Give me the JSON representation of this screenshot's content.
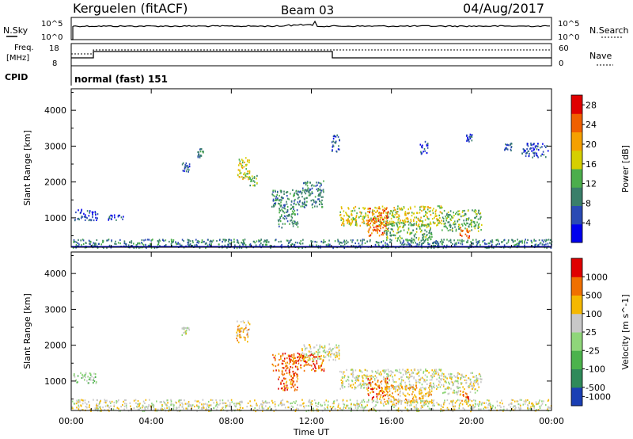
{
  "header": {
    "station": "Kerguelen (fitACF)",
    "beam": "Beam 03",
    "date": "04/Aug/2017"
  },
  "strips": {
    "nsky": {
      "label": "N.Sky",
      "ticks": [
        "10^5",
        "10^0"
      ]
    },
    "nsearch": {
      "label": "N.Search"
    },
    "freq": {
      "label_line1": "Freq.",
      "label_line2": "[MHz]",
      "ticks": [
        "18",
        "8"
      ]
    },
    "nave": {
      "label": "Nave",
      "ticks": [
        "60",
        "0"
      ]
    },
    "cpid": {
      "label": "CPID",
      "value": "normal (fast) 151"
    }
  },
  "chart_data": [
    {
      "type": "heatmap",
      "name": "power-panel",
      "xlabel": "Time UT",
      "ylabel": "Slant Range [km]",
      "x_tick_labels": [
        "00:00",
        "04:00",
        "08:00",
        "12:00",
        "16:00",
        "20:00",
        "00:00"
      ],
      "x_range_hours": [
        0,
        24
      ],
      "y_tick_labels": [
        "1000",
        "2000",
        "3000",
        "4000"
      ],
      "y_range_km": [
        180,
        4600
      ],
      "colorbar": {
        "label": "Power [dB]",
        "ticks": [
          "4",
          "8",
          "12",
          "16",
          "20",
          "24",
          "28"
        ],
        "range": [
          0,
          30
        ],
        "colors": [
          "#0000ee",
          "#2a4ab4",
          "#3a7f6a",
          "#4cae4c",
          "#d6cf00",
          "#f5a000",
          "#f06000",
          "#e00000"
        ]
      },
      "scatter_regions": [
        {
          "t0": 0.1,
          "t1": 1.3,
          "r0": 950,
          "r1": 1250,
          "level": 1
        },
        {
          "t0": 1.8,
          "t1": 2.6,
          "r0": 950,
          "r1": 1100,
          "level": 1
        },
        {
          "t0": 5.5,
          "t1": 5.9,
          "r0": 2300,
          "r1": 2550,
          "level": 1
        },
        {
          "t0": 6.3,
          "t1": 6.6,
          "r0": 2700,
          "r1": 2950,
          "level": 2
        },
        {
          "t0": 8.2,
          "t1": 8.9,
          "r0": 2100,
          "r1": 2700,
          "level": 4
        },
        {
          "t0": 8.9,
          "t1": 9.3,
          "r0": 1900,
          "r1": 2200,
          "level": 3
        },
        {
          "t0": 10.0,
          "t1": 12.6,
          "r0": 1300,
          "r1": 1800,
          "level": 2
        },
        {
          "t0": 10.3,
          "t1": 11.3,
          "r0": 750,
          "r1": 1350,
          "level": 2
        },
        {
          "t0": 11.5,
          "t1": 12.6,
          "r0": 1700,
          "r1": 2050,
          "level": 2
        },
        {
          "t0": 13.0,
          "t1": 13.4,
          "r0": 2850,
          "r1": 3350,
          "level": 1
        },
        {
          "t0": 13.4,
          "t1": 18.5,
          "r0": 800,
          "r1": 1350,
          "level": 4
        },
        {
          "t0": 14.8,
          "t1": 15.8,
          "r0": 500,
          "r1": 1300,
          "level": 6
        },
        {
          "t0": 15.6,
          "t1": 18.0,
          "r0": 400,
          "r1": 900,
          "level": 3
        },
        {
          "t0": 18.5,
          "t1": 20.5,
          "r0": 650,
          "r1": 1250,
          "level": 3
        },
        {
          "t0": 19.4,
          "t1": 19.9,
          "r0": 450,
          "r1": 750,
          "level": 6
        },
        {
          "t0": 17.4,
          "t1": 17.8,
          "r0": 2800,
          "r1": 3150,
          "level": 1
        },
        {
          "t0": 19.7,
          "t1": 20.0,
          "r0": 3150,
          "r1": 3350,
          "level": 1
        },
        {
          "t0": 21.6,
          "t1": 22.0,
          "r0": 2900,
          "r1": 3100,
          "level": 1
        },
        {
          "t0": 22.5,
          "t1": 23.8,
          "r0": 2700,
          "r1": 3100,
          "level": 1
        },
        {
          "t0": 0.0,
          "t1": 24.0,
          "r0": 180,
          "r1": 420,
          "level": 2
        }
      ],
      "ground_line_km": 190
    },
    {
      "type": "heatmap",
      "name": "velocity-panel",
      "xlabel": "Time UT",
      "ylabel": "Slant Range [km]",
      "x_tick_labels": [
        "00:00",
        "04:00",
        "08:00",
        "12:00",
        "16:00",
        "20:00",
        "00:00"
      ],
      "x_range_hours": [
        0,
        24
      ],
      "y_tick_labels": [
        "1000",
        "2000",
        "3000",
        "4000"
      ],
      "y_range_km": [
        180,
        4600
      ],
      "colorbar": {
        "label": "Velocity [m s^-1]",
        "ticks": [
          "1000",
          "500",
          "100",
          "25",
          "-25",
          "-100",
          "-500",
          "-1000"
        ],
        "colors": [
          "#1a3fb4",
          "#2f8a5a",
          "#4cb34c",
          "#8fd67a",
          "#c8c8c8",
          "#f5b800",
          "#f07000",
          "#e00000"
        ]
      },
      "scatter_regions": [
        {
          "t0": 0.1,
          "t1": 1.3,
          "r0": 950,
          "r1": 1250,
          "level": 3
        },
        {
          "t0": 5.5,
          "t1": 5.9,
          "r0": 2300,
          "r1": 2550,
          "level": 4
        },
        {
          "t0": 8.2,
          "t1": 8.9,
          "r0": 2100,
          "r1": 2700,
          "level": 5
        },
        {
          "t0": 10.0,
          "t1": 12.6,
          "r0": 1300,
          "r1": 1800,
          "level": 6
        },
        {
          "t0": 10.3,
          "t1": 11.3,
          "r0": 750,
          "r1": 1350,
          "level": 6
        },
        {
          "t0": 11.5,
          "t1": 13.4,
          "r0": 1600,
          "r1": 2050,
          "level": 4
        },
        {
          "t0": 13.4,
          "t1": 18.5,
          "r0": 800,
          "r1": 1350,
          "level": 4
        },
        {
          "t0": 14.8,
          "t1": 15.8,
          "r0": 500,
          "r1": 1100,
          "level": 6
        },
        {
          "t0": 15.6,
          "t1": 18.0,
          "r0": 400,
          "r1": 900,
          "level": 5
        },
        {
          "t0": 18.5,
          "t1": 20.5,
          "r0": 650,
          "r1": 1250,
          "level": 4
        },
        {
          "t0": 19.4,
          "t1": 19.9,
          "r0": 450,
          "r1": 750,
          "level": 6
        },
        {
          "t0": 0.0,
          "t1": 24.0,
          "r0": 180,
          "r1": 500,
          "level": 4
        }
      ]
    }
  ]
}
